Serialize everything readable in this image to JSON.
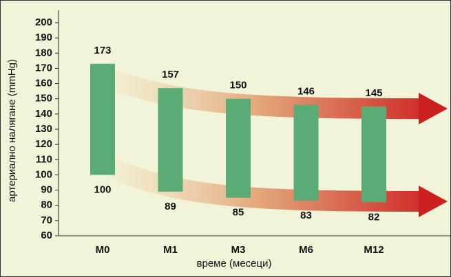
{
  "chart_data": {
    "type": "range-bar",
    "x_label": "време (месеци)",
    "y_label": "артериално налягане (mmHg)",
    "categories": [
      "M0",
      "M1",
      "M3",
      "M6",
      "M12"
    ],
    "high": [
      173,
      157,
      150,
      146,
      145
    ],
    "low": [
      100,
      89,
      85,
      83,
      82
    ],
    "color": "#5aab74",
    "ylim": [
      60,
      200
    ],
    "yticks": [
      60,
      70,
      80,
      90,
      100,
      110,
      120,
      130,
      140,
      150,
      160,
      170,
      180,
      190,
      200
    ]
  }
}
